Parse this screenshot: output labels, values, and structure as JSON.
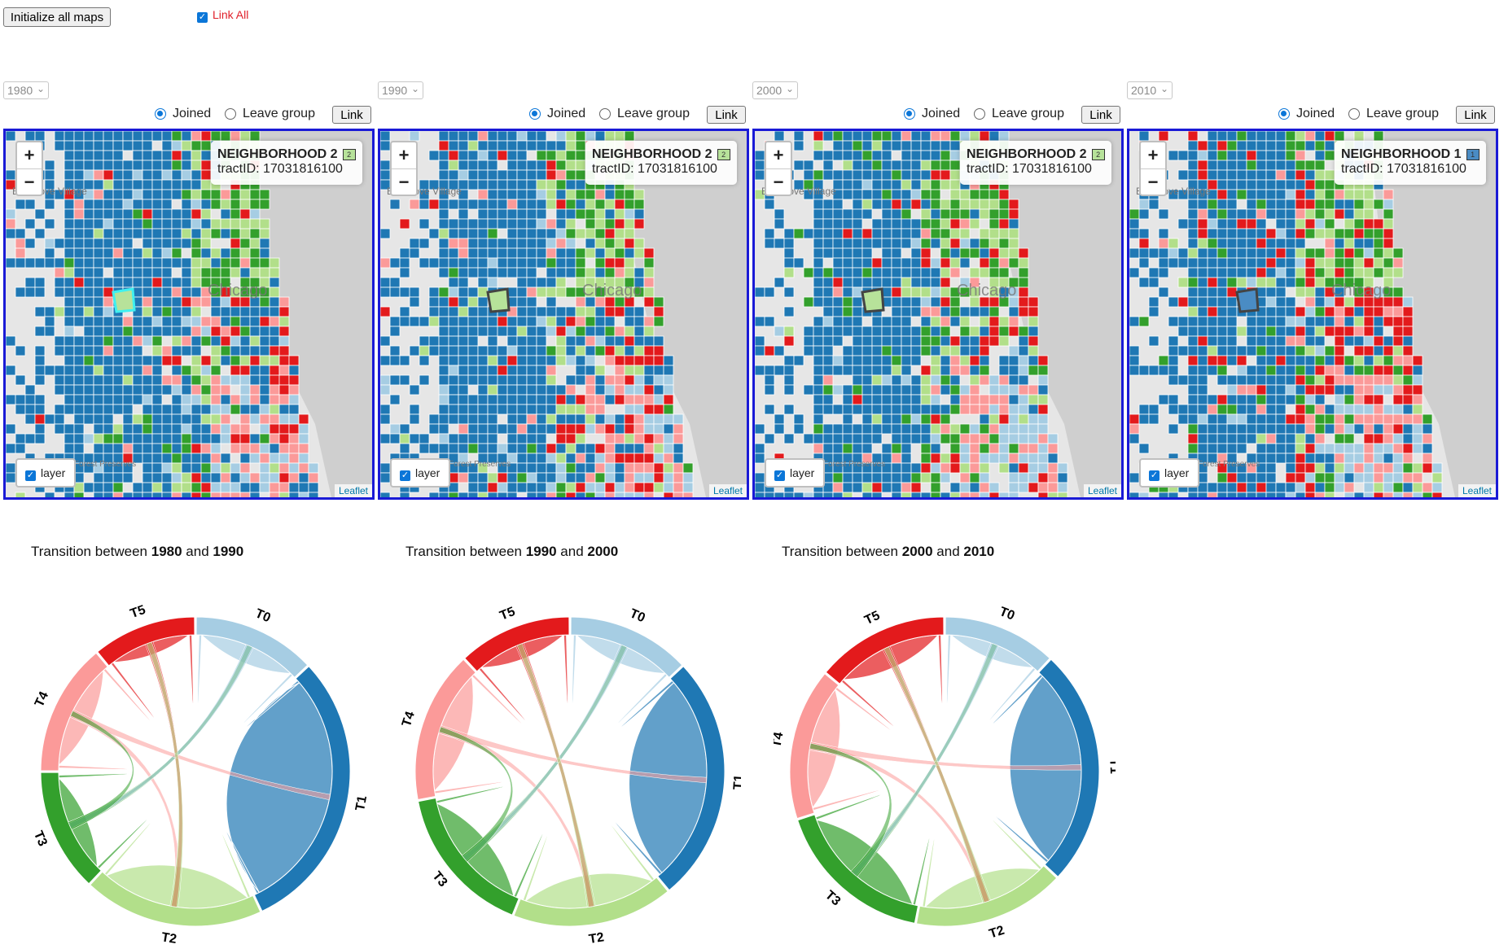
{
  "toolbar": {
    "init_label": "Initialize all maps",
    "link_all_label": "Link All",
    "link_all_checked": true
  },
  "panels": [
    {
      "year": "1980",
      "joined_label": "Joined",
      "leave_label": "Leave group",
      "link_label": "Link",
      "info": {
        "hood": "NEIGHBORHOOD 2",
        "swatch": "2",
        "swatch_color": "#b7e29a",
        "tract": "tractID: 17031816100"
      },
      "layer_label": "layer",
      "attribution": "Leaflet"
    },
    {
      "year": "1990",
      "joined_label": "Joined",
      "leave_label": "Leave group",
      "link_label": "Link",
      "info": {
        "hood": "NEIGHBORHOOD 2",
        "swatch": "2",
        "swatch_color": "#b7e29a",
        "tract": "tractID: 17031816100"
      },
      "layer_label": "layer",
      "attribution": "Leaflet"
    },
    {
      "year": "2000",
      "joined_label": "Joined",
      "leave_label": "Leave group",
      "link_label": "Link",
      "info": {
        "hood": "NEIGHBORHOOD 2",
        "swatch": "2",
        "swatch_color": "#b7e29a",
        "tract": "tractID: 17031816100"
      },
      "layer_label": "layer",
      "attribution": "Leaflet"
    },
    {
      "year": "2010",
      "joined_label": "Joined",
      "leave_label": "Leave group",
      "link_label": "Link",
      "info": {
        "hood": "NEIGHBORHOOD 1",
        "swatch": "1",
        "swatch_color": "#4a8cc4",
        "tract": "tractID: 17031816100"
      },
      "layer_label": "layer",
      "attribution": "Leaflet"
    }
  ],
  "map_labels": {
    "city": "Chicago",
    "suburb": "Elk Grove Village",
    "preserve": "Forest Preserves"
  },
  "colors": {
    "T0": "#a6cde3",
    "T1": "#1f78b4",
    "T2": "#b2df8a",
    "T3": "#33a02c",
    "T4": "#fb9a99",
    "T5": "#e31a1c",
    "map_border": "#1a1ad6"
  },
  "chord_titles": [
    {
      "prefix": "Transition between ",
      "from": "1980",
      "mid": " and ",
      "to": "1990"
    },
    {
      "prefix": "Transition between ",
      "from": "1990",
      "mid": " and ",
      "to": "2000"
    },
    {
      "prefix": "Transition between ",
      "from": "2000",
      "mid": " and ",
      "to": "2010"
    }
  ],
  "chord_groups": [
    "T0",
    "T1",
    "T2",
    "T3",
    "T4",
    "T5"
  ],
  "chord_shares": [
    [
      0.13,
      0.3,
      0.19,
      0.13,
      0.14,
      0.11
    ],
    [
      0.13,
      0.26,
      0.17,
      0.16,
      0.16,
      0.12
    ],
    [
      0.12,
      0.25,
      0.16,
      0.17,
      0.16,
      0.14
    ]
  ]
}
